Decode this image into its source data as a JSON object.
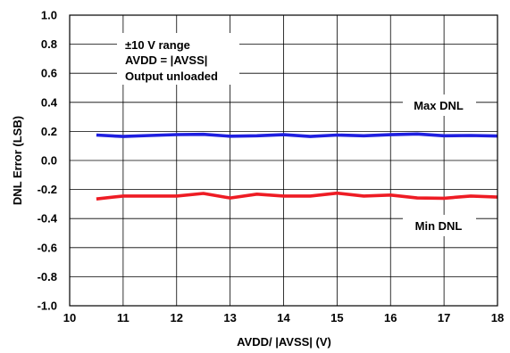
{
  "chart_data": {
    "type": "line",
    "title": "",
    "xlabel": "AVDD/ |AVSS| (V)",
    "ylabel": "DNL Error (LSB)",
    "xlim": [
      10,
      18
    ],
    "ylim": [
      -1.0,
      1.0
    ],
    "x_ticks": [
      "10",
      "11",
      "12",
      "13",
      "14",
      "15",
      "16",
      "17",
      "18"
    ],
    "y_ticks": [
      "1.0",
      "0.8",
      "0.6",
      "0.4",
      "0.2",
      "0.0",
      "-0.2",
      "-0.4",
      "-0.6",
      "-0.8",
      "-1.0"
    ],
    "grid": true,
    "x": [
      10.5,
      11,
      11.5,
      12,
      12.5,
      13,
      13.5,
      14,
      14.5,
      15,
      15.5,
      16,
      16.5,
      17,
      17.5,
      18
    ],
    "series": [
      {
        "name": "Max DNL",
        "color": "#1f1fe0",
        "values": [
          0.175,
          0.165,
          0.172,
          0.178,
          0.18,
          0.167,
          0.17,
          0.177,
          0.165,
          0.175,
          0.17,
          0.177,
          0.182,
          0.17,
          0.172,
          0.168
        ]
      },
      {
        "name": "Min DNL",
        "color": "#ee1c24",
        "values": [
          -0.265,
          -0.245,
          -0.245,
          -0.245,
          -0.227,
          -0.258,
          -0.232,
          -0.245,
          -0.245,
          -0.225,
          -0.245,
          -0.238,
          -0.258,
          -0.26,
          -0.245,
          -0.252
        ]
      }
    ],
    "annotations": [
      {
        "id": "conditions",
        "lines": [
          "±10 V range",
          "AVDD = |AVSS|",
          "Output unloaded"
        ]
      },
      {
        "id": "max-label",
        "text": "Max DNL"
      },
      {
        "id": "min-label",
        "text": "Min DNL"
      }
    ]
  }
}
